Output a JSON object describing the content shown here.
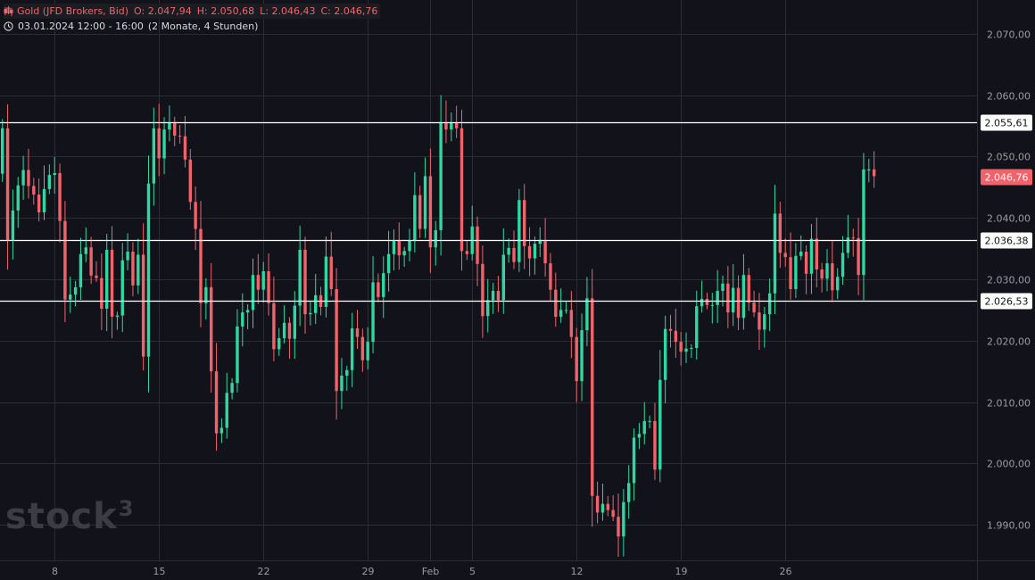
{
  "legend": {
    "instrument": "Gold (JFD Brokers, Bid)",
    "open_label": "O:",
    "open": "2.047,94",
    "high_label": "H:",
    "high": "2.050,68",
    "low_label": "L:",
    "low": "2.046,43",
    "close_label": "C:",
    "close": "2.046,76",
    "range_text": "03.01.2024 12:00 - 16:00",
    "period_text": "(2 Monate, 4 Stunden)"
  },
  "watermark": {
    "text": "stock",
    "superscript": "3"
  },
  "colors": {
    "background": "#12131a",
    "grid": "#2c2d34",
    "up": "#2fd8a0",
    "down": "#f0636b",
    "axis_text": "#9a9ca3",
    "level_line": "#ffffff"
  },
  "chart_data": {
    "type": "candlestick",
    "title": "Gold (JFD Brokers, Bid)",
    "interval": "4 Stunden",
    "y_ticks": [
      1990,
      2000,
      2010,
      2020,
      2030,
      2040,
      2050,
      2060,
      2070
    ],
    "y_tick_labels": [
      "1.990,00",
      "2.000,00",
      "2.010,00",
      "2.020,00",
      "2.030,00",
      "2.040,00",
      "2.050,00",
      "2.060,00",
      "2.070,00"
    ],
    "ylim": [
      1984.2,
      2075.5
    ],
    "x_ticks": [
      {
        "label": "8",
        "index": 10
      },
      {
        "label": "15",
        "index": 30
      },
      {
        "label": "22",
        "index": 50
      },
      {
        "label": "29",
        "index": 70
      },
      {
        "label": "Feb",
        "index": 82
      },
      {
        "label": "5",
        "index": 90
      },
      {
        "label": "12",
        "index": 110
      },
      {
        "label": "19",
        "index": 130
      },
      {
        "label": "26",
        "index": 150
      }
    ],
    "candles_count": 168,
    "horizontal_levels": [
      {
        "value": 2055.61,
        "label": "2.055,61"
      },
      {
        "value": 2036.38,
        "label": "2.036,38"
      },
      {
        "value": 2026.53,
        "label": "2.026,53"
      }
    ],
    "last_price": {
      "value": 2046.76,
      "label": "2.046,76"
    },
    "closes": [
      2054.6,
      2036.4,
      2041.2,
      2045.3,
      2047.8,
      2045.2,
      2043.8,
      2040.9,
      2044.7,
      2047.0,
      2047.3,
      2039.5,
      2026.7,
      2027.5,
      2028.7,
      2034.1,
      2035.2,
      2030.6,
      2030.2,
      2025.2,
      2034.8,
      2023.9,
      2024.1,
      2033.1,
      2034.5,
      2029.0,
      2034.0,
      2017.4,
      2045.6,
      2054.6,
      2049.7,
      2054.4,
      2055.6,
      2053.4,
      2053.3,
      2049.5,
      2042.6,
      2038.2,
      2026.1,
      2028.7,
      2015.0,
      2004.9,
      2005.8,
      2011.5,
      2013.1,
      2022.3,
      2024.6,
      2025.0,
      2030.7,
      2028.3,
      2031.3,
      2026.1,
      2018.6,
      2020.4,
      2022.9,
      2020.3,
      2025.7,
      2034.8,
      2024.3,
      2024.5,
      2027.4,
      2025.5,
      2033.7,
      2028.4,
      2011.8,
      2014.3,
      2015.2,
      2022.0,
      2020.6,
      2016.8,
      2019.8,
      2029.5,
      2027.1,
      2031.0,
      2034.1,
      2036.4,
      2033.9,
      2034.6,
      2036.3,
      2043.7,
      2038.2,
      2046.8,
      2035.2,
      2038.0,
      2055.6,
      2054.4,
      2055.6,
      2054.6,
      2034.6,
      2034.1,
      2038.6,
      2032.5,
      2024.0,
      2026.6,
      2028.1,
      2026.6,
      2034.0,
      2035.1,
      2032.8,
      2042.9,
      2035.4,
      2033.4,
      2035.8,
      2036.4,
      2032.6,
      2028.3,
      2023.9,
      2025.0,
      2025.0,
      2020.6,
      2013.4,
      2021.7,
      2026.9,
      1994.7,
      1992.0,
      1993.4,
      1992.4,
      1991.3,
      1988.1,
      1993.7,
      1996.8,
      2004.2,
      2004.8,
      2006.9,
      2006.9,
      1999.0,
      2013.6,
      2021.9,
      2021.6,
      2019.8,
      2018.2,
      2018.7,
      2018.8,
      2025.6,
      2026.8,
      2025.8,
      2025.8,
      2028.1,
      2029.3,
      2024.6,
      2028.6,
      2023.7,
      2030.7,
      2026.2,
      2024.6,
      2021.8,
      2024.3,
      2027.7,
      2040.7,
      2034.3,
      2033.6,
      2028.4,
      2033.8,
      2034.5,
      2030.9,
      2036.6,
      2031.6,
      2030.1,
      2032.6,
      2028.2,
      2030.4,
      2034.3,
      2036.8,
      2036.7,
      2030.7,
      2047.9,
      2047.9,
      2046.8
    ]
  }
}
